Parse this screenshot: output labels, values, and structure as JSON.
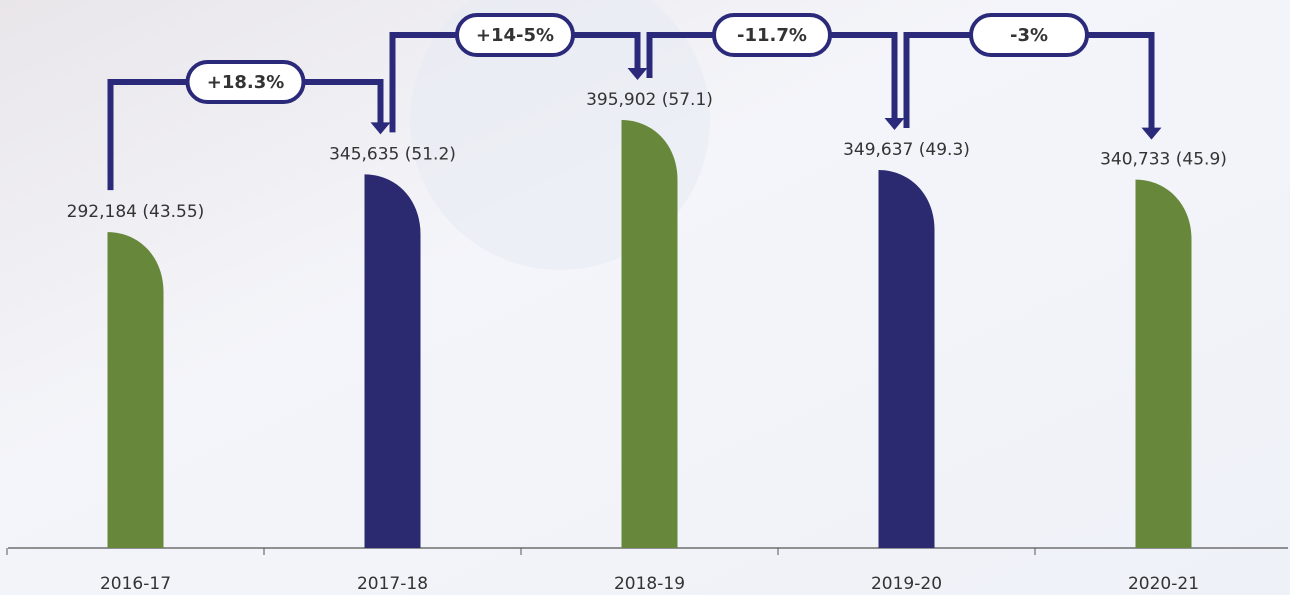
{
  "chart_data": {
    "type": "bar",
    "categories": [
      "2016-17",
      "2017-18",
      "2018-19",
      "2019-20",
      "2020-21"
    ],
    "values": [
      292184,
      345635,
      395902,
      349637,
      340733
    ],
    "value_labels": [
      "292,184 (43.55)",
      "345,635 (51.2)",
      "395,902 (57.1)",
      "349,637 (49.3)",
      "340,733 (45.9)"
    ],
    "colors": [
      "#67873a",
      "#2b2a70",
      "#67873a",
      "#2b2a70",
      "#67873a"
    ],
    "annotations": [
      "+18.3%",
      "+14-5%",
      "-11.7%",
      "-3%"
    ],
    "annotation_color": "#2b2a7a"
  }
}
